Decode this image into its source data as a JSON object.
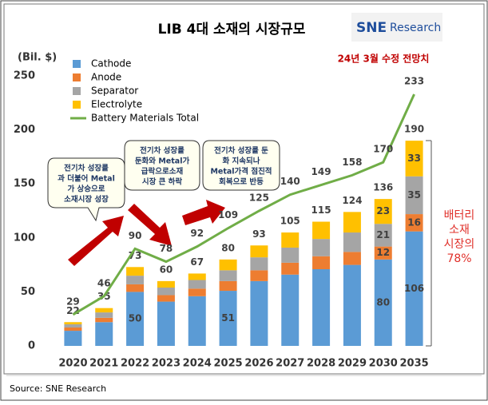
{
  "chart_data": {
    "type": "bar",
    "stacked": true,
    "title": "LIB 4대 소재의 시장규모",
    "logo": [
      "SNE",
      "Research"
    ],
    "subtitle": "24년 3월  수정 전망치",
    "y_label": "(Bil. $)",
    "categories": [
      "2020",
      "2021",
      "2022",
      "2023",
      "2024",
      "2025",
      "2026",
      "2027",
      "2028",
      "2029",
      "2030",
      "2035"
    ],
    "series": [
      {
        "name": "Cathode",
        "color": "#5b9bd5",
        "values": [
          14,
          22,
          50,
          41,
          46,
          51,
          60,
          66,
          71,
          75,
          80,
          106
        ],
        "value_labels": [
          null,
          null,
          "50",
          null,
          null,
          "51",
          null,
          null,
          null,
          null,
          "80",
          "106"
        ]
      },
      {
        "name": "Anode",
        "color": "#ed7d31",
        "values": [
          3,
          4,
          7,
          6,
          7,
          9,
          10,
          11,
          12,
          12,
          12,
          16
        ],
        "value_labels": [
          null,
          null,
          null,
          null,
          null,
          null,
          null,
          null,
          null,
          null,
          "12",
          "16"
        ]
      },
      {
        "name": "Separator",
        "color": "#a5a5a5",
        "values": [
          3,
          5,
          8,
          7,
          8,
          10,
          12,
          14,
          16,
          18,
          21,
          35
        ],
        "value_labels": [
          null,
          null,
          null,
          null,
          null,
          null,
          null,
          null,
          null,
          null,
          "21",
          "35"
        ]
      },
      {
        "name": "Electrolyte",
        "color": "#ffc000",
        "values": [
          2,
          4,
          8,
          6,
          6,
          10,
          11,
          14,
          16,
          19,
          23,
          33
        ],
        "value_labels": [
          null,
          null,
          null,
          null,
          null,
          null,
          null,
          null,
          null,
          null,
          "23",
          "33"
        ]
      },
      {
        "name": "Battery Materials Total",
        "type": "line",
        "color": "#70ad47",
        "values": [
          29,
          46,
          90,
          78,
          92,
          109,
          125,
          140,
          149,
          158,
          170,
          233
        ]
      }
    ],
    "totals": [
      22,
      35,
      73,
      60,
      67,
      80,
      93,
      105,
      115,
      124,
      136,
      190
    ],
    "ylim": [
      0,
      250
    ],
    "yticks": [
      0,
      50,
      100,
      150,
      200,
      250
    ],
    "annotations": [
      [
        "전기차 성장률",
        "과 더불어 Metal",
        "가 상승으로",
        "소재시장 성장"
      ],
      [
        "전기차 성장률",
        "둔화와 Metal가",
        "급락으로소재",
        "시장 큰 하락"
      ],
      [
        "전기차 성장률 둔",
        "화 지속되나",
        "Metal가격 점진적",
        "회복으로 반등"
      ]
    ],
    "share_note": [
      "배터리",
      "소재",
      "시장의",
      "78%"
    ],
    "source": "Source: SNE Research"
  }
}
